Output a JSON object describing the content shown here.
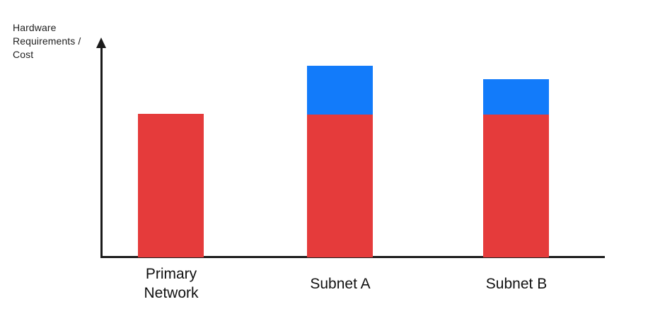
{
  "chart_data": {
    "type": "bar",
    "stacked": true,
    "title": "",
    "xlabel": "",
    "ylabel": "Hardware Requirements / Cost",
    "y_axis_label_lines": [
      "Hardware",
      "Requirements /",
      "Cost"
    ],
    "categories": [
      "Primary Network",
      "Subnet A",
      "Subnet B"
    ],
    "series": [
      {
        "name": "red-base-segment",
        "color": "#E53B3B",
        "values": [
          66.3,
          66.0,
          66.0
        ]
      },
      {
        "name": "blue-top-segment",
        "color": "#127BFA",
        "values": [
          0,
          22.5,
          16.3
        ]
      }
    ],
    "totals": [
      66.3,
      88.5,
      82.3
    ],
    "ylim": [
      0,
      100
    ],
    "value_units": "relative (no numeric ticks shown)",
    "grid": false,
    "legend_position": "none",
    "axis_color": "#1a1a1a",
    "axis_ticks": []
  }
}
